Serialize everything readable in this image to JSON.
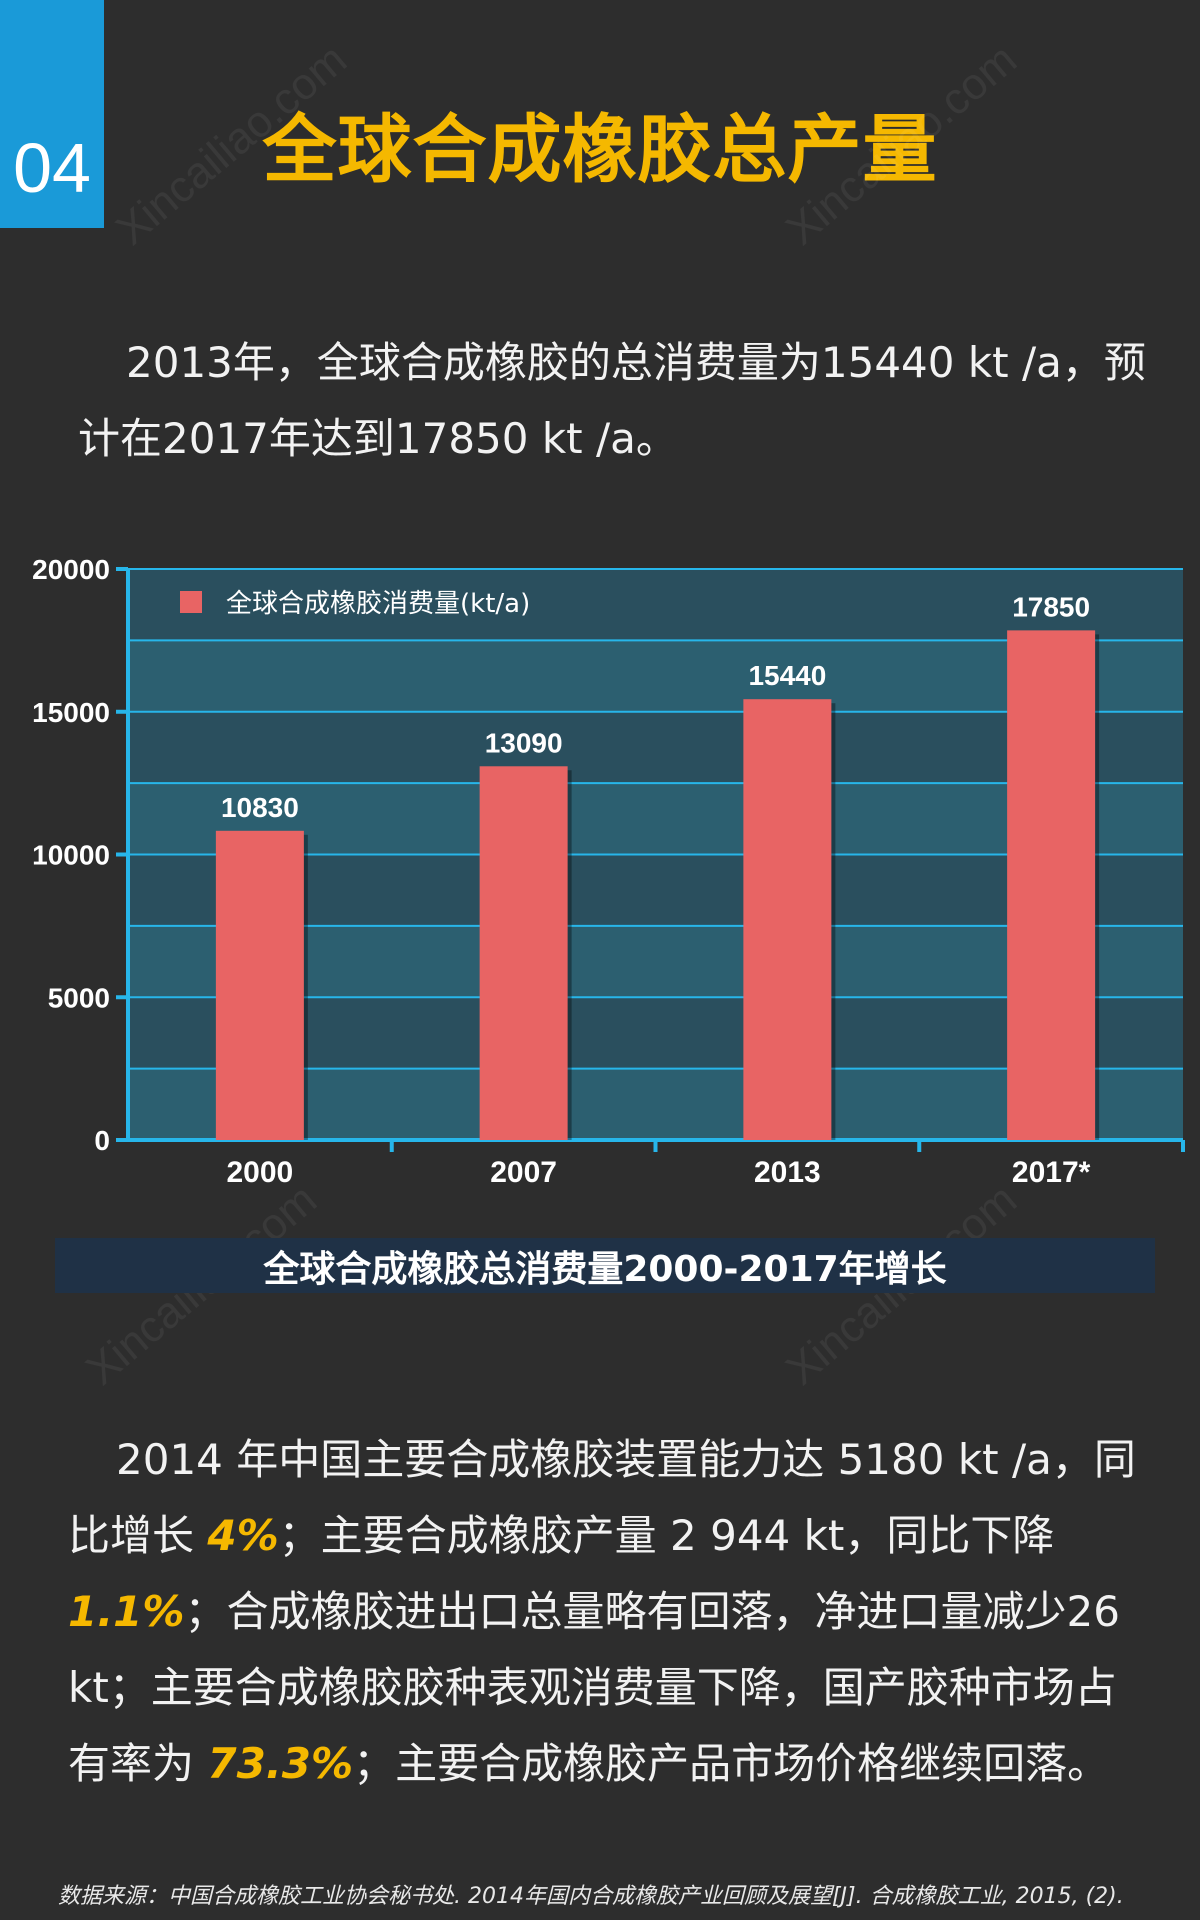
{
  "badge": "04",
  "title": "全球合成橡胶总产量",
  "intro": "2013年，全球合成橡胶的总消费量为15440 kt /a，预计在2017年达到17850 kt /a。",
  "chart_data": {
    "type": "bar",
    "categories": [
      "2000",
      "2007",
      "2013",
      "2017*"
    ],
    "values": [
      10830,
      13090,
      15440,
      17850
    ],
    "series": [
      {
        "name": "全球合成橡胶消费量(kt/a)",
        "values": [
          10830,
          13090,
          15440,
          17850
        ]
      }
    ],
    "ylim": [
      0,
      20000
    ],
    "yticks": [
      "0",
      "5000",
      "10000",
      "15000",
      "20000"
    ],
    "legend": "全球合成橡胶消费量(kt/a)",
    "legend_position": "top-left",
    "colors": {
      "bar": "#e86464",
      "plot_bg": "#2a4f5e",
      "band": "#2c5f70",
      "axis": "#27b6ea"
    }
  },
  "caption": "全球合成橡胶总消费量2000-2017年增长",
  "para2": {
    "s1": "2014 年中国主要合成橡胶装置能力达 5180 kt /a，同比增长 ",
    "h1": "4%",
    "s2": "；主要合成橡胶产量 2 944 kt，同比下降 ",
    "h2": "1.1%",
    "s3": "；合成橡胶进出口总量略有回落，净进口量减少26 kt；主要合成橡胶胶种表观消费量下降，国产胶种市场占有率为 ",
    "h3": "73.3%",
    "s4": "；主要合成橡胶产品市场价格继续回落。"
  },
  "source": "数据来源：中国合成橡胶工业协会秘书处. 2014年国内合成橡胶产业回顾及展望[J]. 合成橡胶工业, 2015, (2).",
  "watermark": "Xincailiao.com"
}
